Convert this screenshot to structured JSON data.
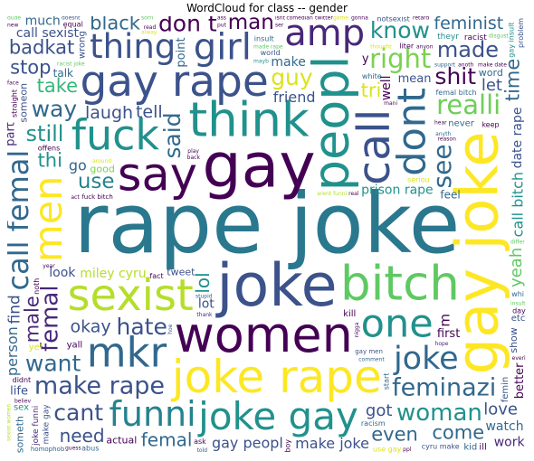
{
  "chart_data": {
    "type": "wordcloud",
    "title": "WordCloud for class -- gender",
    "colormap": "viridis",
    "background": "#ffffff",
    "words": [
      {
        "text": "rape joke",
        "weight": 100,
        "color": "#2a788e"
      },
      {
        "text": "gay",
        "weight": 72,
        "color": "#440154"
      },
      {
        "text": "joke",
        "weight": 68,
        "color": "#3b528b"
      },
      {
        "text": "gay joke",
        "weight": 67,
        "color": "#fde725"
      },
      {
        "text": "women",
        "weight": 55,
        "color": "#440154"
      },
      {
        "text": "peopl",
        "weight": 55,
        "color": "#21918c"
      },
      {
        "text": "think",
        "weight": 53,
        "color": "#21918c"
      },
      {
        "text": "bitch",
        "weight": 53,
        "color": "#5ec962"
      },
      {
        "text": "say",
        "weight": 51,
        "color": "#440154"
      },
      {
        "text": "joke rape",
        "weight": 50,
        "color": "#fde725"
      },
      {
        "text": "call",
        "weight": 49,
        "color": "#3b528b"
      },
      {
        "text": "sexist",
        "weight": 48,
        "color": "#b5de2b"
      },
      {
        "text": "gay rape",
        "weight": 46,
        "color": "#3b528b"
      },
      {
        "text": "fuck",
        "weight": 45,
        "color": "#21918c"
      },
      {
        "text": "mkr",
        "weight": 44,
        "color": "#31688e"
      },
      {
        "text": "one",
        "weight": 42,
        "color": "#21918c"
      },
      {
        "text": "dont",
        "weight": 42,
        "color": "#31688e"
      },
      {
        "text": "men",
        "weight": 42,
        "color": "#fde725"
      },
      {
        "text": "joke gay",
        "weight": 41,
        "color": "#21918c"
      },
      {
        "text": "girl",
        "weight": 38,
        "color": "#3b528b"
      },
      {
        "text": "amp",
        "weight": 38,
        "color": "#482878"
      },
      {
        "text": "funni",
        "weight": 36,
        "color": "#26828e"
      },
      {
        "text": "thing",
        "weight": 35,
        "color": "#3b528b"
      },
      {
        "text": "call femal",
        "weight": 29,
        "color": "#31688e"
      },
      {
        "text": "joke",
        "weight": 32,
        "color": "#31688e"
      },
      {
        "text": "right",
        "weight": 25,
        "color": "#7ad151"
      },
      {
        "text": "realli",
        "weight": 25,
        "color": "#6ece58"
      },
      {
        "text": "make rape",
        "weight": 23,
        "color": "#3b528b"
      },
      {
        "text": "feminazi",
        "weight": 23,
        "color": "#31688e"
      },
      {
        "text": "woman",
        "weight": 22,
        "color": "#21918c"
      },
      {
        "text": "femal",
        "weight": 22,
        "color": "#482878"
      },
      {
        "text": "see",
        "weight": 24,
        "color": "#31688e"
      },
      {
        "text": "way",
        "weight": 20,
        "color": "#31688e"
      },
      {
        "text": "shit",
        "weight": 20,
        "color": "#440154"
      },
      {
        "text": "don t",
        "weight": 20,
        "color": "#440154"
      },
      {
        "text": "guy",
        "weight": 20,
        "color": "#dce319"
      },
      {
        "text": "want",
        "weight": 20,
        "color": "#31688e"
      },
      {
        "text": "know",
        "weight": 20,
        "color": "#21918c"
      },
      {
        "text": "said",
        "weight": 20,
        "color": "#31688e"
      },
      {
        "text": "hate",
        "weight": 20,
        "color": "#3b528b"
      },
      {
        "text": "cant",
        "weight": 20,
        "color": "#3b528b"
      },
      {
        "text": "made",
        "weight": 19,
        "color": "#3b528b"
      },
      {
        "text": "still",
        "weight": 19,
        "color": "#21918c"
      },
      {
        "text": "man",
        "weight": 18,
        "color": "#440154"
      },
      {
        "text": "use",
        "weight": 18,
        "color": "#26828e"
      },
      {
        "text": "male",
        "weight": 16,
        "color": "#482878"
      },
      {
        "text": "even",
        "weight": 16,
        "color": "#31688e"
      },
      {
        "text": "take",
        "weight": 16,
        "color": "#35b779"
      },
      {
        "text": "black",
        "weight": 16,
        "color": "#31688e"
      },
      {
        "text": "time",
        "weight": 16,
        "color": "#31688e"
      },
      {
        "text": "gay peopl",
        "weight": 15,
        "color": "#3b528b"
      },
      {
        "text": "make joke",
        "weight": 15,
        "color": "#3b528b"
      },
      {
        "text": "call bitch",
        "weight": 15,
        "color": "#21918c"
      },
      {
        "text": "badkat",
        "weight": 15,
        "color": "#3b528b"
      },
      {
        "text": "stop",
        "weight": 15,
        "color": "#3b528b"
      },
      {
        "text": "come",
        "weight": 15,
        "color": "#31688e"
      },
      {
        "text": "friend",
        "weight": 15,
        "color": "#3b528b"
      },
      {
        "text": "thi",
        "weight": 15,
        "color": "#21918c"
      },
      {
        "text": "tri",
        "weight": 15,
        "color": "#dce319"
      },
      {
        "text": "person",
        "weight": 15,
        "color": "#31688e"
      },
      {
        "text": "lol",
        "weight": 14,
        "color": "#21918c"
      },
      {
        "text": "need",
        "weight": 14,
        "color": "#3b528b"
      },
      {
        "text": "femal",
        "weight": 14,
        "color": "#31688e"
      },
      {
        "text": "prison rape",
        "weight": 13,
        "color": "#21918c"
      },
      {
        "text": "laugh",
        "weight": 13,
        "color": "#3b528b"
      },
      {
        "text": "miley cyru",
        "weight": 13,
        "color": "#b5de2b"
      },
      {
        "text": "date rape",
        "weight": 13,
        "color": "#3b528b"
      },
      {
        "text": "feminist",
        "weight": 13,
        "color": "#31688e"
      },
      {
        "text": "okay",
        "weight": 13,
        "color": "#3b528b"
      },
      {
        "text": "tell",
        "weight": 13,
        "color": "#3b528b"
      },
      {
        "text": "make",
        "weight": 13,
        "color": "#31688e"
      },
      {
        "text": "someth",
        "weight": 12,
        "color": "#31688e"
      },
      {
        "text": "call sexist",
        "weight": 12,
        "color": "#3b528b"
      },
      {
        "text": "someon",
        "weight": 12,
        "color": "#3b528b"
      },
      {
        "text": "work",
        "weight": 12,
        "color": "#482878"
      },
      {
        "text": "good",
        "weight": 12,
        "color": "#7ad151"
      },
      {
        "text": "look",
        "weight": 12,
        "color": "#3b528b"
      },
      {
        "text": "love",
        "weight": 12,
        "color": "#3b528b"
      },
      {
        "text": "much",
        "weight": 12,
        "color": "#31688e"
      },
      {
        "text": "let",
        "weight": 12,
        "color": "#3b528b"
      },
      {
        "text": "yeah",
        "weight": 12,
        "color": "#5ec962"
      },
      {
        "text": "got",
        "weight": 12,
        "color": "#3b528b"
      },
      {
        "text": "well",
        "weight": 12,
        "color": "#440154"
      },
      {
        "text": "watch",
        "weight": 12,
        "color": "#31688e"
      },
      {
        "text": "actual",
        "weight": 12,
        "color": "#440154"
      },
      {
        "text": "tweet",
        "weight": 12,
        "color": "#3b528b"
      },
      {
        "text": "word",
        "weight": 12,
        "color": "#31688e"
      },
      {
        "text": "find",
        "weight": 11,
        "color": "#3b528b"
      },
      {
        "text": "mean",
        "weight": 11,
        "color": "#3b528b"
      },
      {
        "text": "never",
        "weight": 11,
        "color": "#31688e"
      },
      {
        "text": "notsexist",
        "weight": 11,
        "color": "#3b528b"
      },
      {
        "text": "fuck bitch",
        "weight": 10,
        "color": "#440154"
      },
      {
        "text": "talk",
        "weight": 10,
        "color": "#31688e"
      },
      {
        "text": "make gay",
        "weight": 10,
        "color": "#3b528b"
      },
      {
        "text": "joke funni",
        "weight": 9,
        "color": "#482878"
      },
      {
        "text": "gay men",
        "weight": 9,
        "color": "#3b528b"
      },
      {
        "text": "homophob",
        "weight": 9,
        "color": "#31688e"
      },
      {
        "text": "theyr",
        "weight": 9,
        "color": "#21918c"
      },
      {
        "text": "racist",
        "weight": 9,
        "color": "#440154"
      },
      {
        "text": "feel",
        "weight": 9,
        "color": "#31688e"
      },
      {
        "text": "go",
        "weight": 9,
        "color": "#31688e"
      },
      {
        "text": "show",
        "weight": 8,
        "color": "#3b528b"
      },
      {
        "text": "cyru make",
        "weight": 8,
        "color": "#3b528b"
      },
      {
        "text": "seriou",
        "weight": 8,
        "color": "#dce319"
      },
      {
        "text": "m",
        "weight": 8,
        "color": "#440154"
      },
      {
        "text": "lot",
        "weight": 7,
        "color": "#3b528b"
      },
      {
        "text": "insult",
        "weight": 7,
        "color": "#31688e"
      },
      {
        "text": "comedian",
        "weight": 7,
        "color": "#440154"
      },
      {
        "text": "gay insult",
        "weight": 7,
        "color": "#21918c"
      },
      {
        "text": "arent funni",
        "weight": 7,
        "color": "#b5de2b"
      },
      {
        "text": "racist joke",
        "weight": 6,
        "color": "#5ec962"
      },
      {
        "text": "use gay",
        "weight": 6,
        "color": "#dce319"
      },
      {
        "text": "white",
        "weight": 6,
        "color": "#31688e"
      },
      {
        "text": "world",
        "weight": 6,
        "color": "#3b528b"
      },
      {
        "text": "life",
        "weight": 6,
        "color": "#3b528b"
      },
      {
        "text": "femin",
        "weight": 6,
        "color": "#3b528b"
      },
      {
        "text": "yall",
        "weight": 6,
        "color": "#440154"
      },
      {
        "text": "equal",
        "weight": 6,
        "color": "#440154"
      },
      {
        "text": "fact",
        "weight": 6,
        "color": "#440154"
      },
      {
        "text": "comment",
        "weight": 6,
        "color": "#31688e"
      },
      {
        "text": "femal bitch",
        "weight": 6,
        "color": "#31688e"
      },
      {
        "text": "offens",
        "weight": 6,
        "color": "#440154"
      },
      {
        "text": "sexist women",
        "weight": 6,
        "color": "#b5de2b"
      },
      {
        "text": "first",
        "weight": 6,
        "color": "#440154"
      },
      {
        "text": "liter",
        "weight": 6,
        "color": "#440154"
      },
      {
        "text": "etc",
        "weight": 6,
        "color": "#3b528b"
      },
      {
        "text": "hoe",
        "weight": 6,
        "color": "#3b528b"
      },
      {
        "text": "racism",
        "weight": 6,
        "color": "#31688e"
      },
      {
        "text": "yet",
        "weight": 6,
        "color": "#dce319"
      },
      {
        "text": "point",
        "weight": 6,
        "color": "#31688e"
      },
      {
        "text": "kill",
        "weight": 6,
        "color": "#440154"
      },
      {
        "text": "kid",
        "weight": 6,
        "color": "#31688e"
      },
      {
        "text": "abus",
        "weight": 6,
        "color": "#31688e"
      },
      {
        "text": "reason",
        "weight": 6,
        "color": "#440154"
      },
      {
        "text": "whi",
        "weight": 6,
        "color": "#31688e"
      },
      {
        "text": "around",
        "weight": 6,
        "color": "#dce319"
      },
      {
        "text": "start",
        "weight": 6,
        "color": "#31688e"
      },
      {
        "text": "problem",
        "weight": 6,
        "color": "#3b528b"
      },
      {
        "text": "feminist dog",
        "weight": 5,
        "color": "#440154"
      },
      {
        "text": "anyth",
        "weight": 6,
        "color": "#31688e"
      },
      {
        "text": "thank",
        "weight": 6,
        "color": "#482878"
      },
      {
        "text": "dude",
        "weight": 6,
        "color": "#5ec962"
      },
      {
        "text": "keep",
        "weight": 6,
        "color": "#440154"
      },
      {
        "text": "back",
        "weight": 6,
        "color": "#440154"
      },
      {
        "text": "wrong",
        "weight": 6,
        "color": "#3b528b"
      },
      {
        "text": "hope",
        "weight": 6,
        "color": "#482878"
      },
      {
        "text": "didnt",
        "weight": 6,
        "color": "#440154"
      },
      {
        "text": "doesnt",
        "weight": 6,
        "color": "#3b528b"
      },
      {
        "text": "thought",
        "weight": 6,
        "color": "#dce319"
      },
      {
        "text": "part",
        "weight": 6,
        "color": "#482878"
      },
      {
        "text": "sorri",
        "weight": 6,
        "color": "#5ec962"
      },
      {
        "text": "twitter",
        "weight": 6,
        "color": "#440154"
      },
      {
        "text": "anoth",
        "weight": 6,
        "color": "#440154"
      },
      {
        "text": "sex",
        "weight": 6,
        "color": "#21918c"
      },
      {
        "text": "game",
        "weight": 6,
        "color": "#dce319"
      },
      {
        "text": "gonna",
        "weight": 6,
        "color": "#440154"
      },
      {
        "text": "ask",
        "weight": 6,
        "color": "#440154"
      },
      {
        "text": "year",
        "weight": 6,
        "color": "#440154"
      },
      {
        "text": "made rape",
        "weight": 6,
        "color": "#5ec962"
      },
      {
        "text": "retard",
        "weight": 6,
        "color": "#440154"
      },
      {
        "text": "nigga",
        "weight": 6,
        "color": "#440154"
      },
      {
        "text": "disgust",
        "weight": 6,
        "color": "#5ec962"
      },
      {
        "text": "play",
        "weight": 6,
        "color": "#440154"
      },
      {
        "text": "read",
        "weight": 6,
        "color": "#440154"
      },
      {
        "text": "anyon",
        "weight": 6,
        "color": "#440154"
      },
      {
        "text": "support",
        "weight": 6,
        "color": "#31688e"
      },
      {
        "text": "told",
        "weight": 6,
        "color": "#3b528b"
      },
      {
        "text": "make date",
        "weight": 6,
        "color": "#440154"
      },
      {
        "text": "happen",
        "weight": 6,
        "color": "#3b528b"
      },
      {
        "text": "mani",
        "weight": 6,
        "color": "#440154"
      },
      {
        "text": "stupid",
        "weight": 6,
        "color": "#31688e"
      },
      {
        "text": "believ",
        "weight": 6,
        "color": "#440154"
      },
      {
        "text": "better",
        "weight": 6,
        "color": "#440154"
      },
      {
        "text": "new",
        "weight": 6,
        "color": "#440154"
      },
      {
        "text": "real",
        "weight": 6,
        "color": "#440154"
      },
      {
        "text": "alway",
        "weight": 6,
        "color": "#dce319"
      },
      {
        "text": "ass",
        "weight": 6,
        "color": "#440154"
      },
      {
        "text": "comedi",
        "weight": 6,
        "color": "#440154"
      },
      {
        "text": "joke arent",
        "weight": 6,
        "color": "#5ec962"
      },
      {
        "text": "everyon",
        "weight": 6,
        "color": "#dce319"
      },
      {
        "text": "ill",
        "weight": 6,
        "color": "#440154"
      },
      {
        "text": "mayb",
        "weight": 6,
        "color": "#21918c"
      },
      {
        "text": "noth",
        "weight": 6,
        "color": "#440154"
      },
      {
        "text": "isnt",
        "weight": 6,
        "color": "#440154"
      },
      {
        "text": "ppl",
        "weight": 6,
        "color": "#440154"
      },
      {
        "text": "differ",
        "weight": 6,
        "color": "#5ec962"
      },
      {
        "text": "straight",
        "weight": 6,
        "color": "#440154"
      },
      {
        "text": "insult",
        "weight": 6,
        "color": "#5ec962"
      },
      {
        "text": "guess",
        "weight": 6,
        "color": "#440154"
      },
      {
        "text": "face",
        "weight": 6,
        "color": "#440154"
      },
      {
        "text": "everi",
        "weight": 6,
        "color": "#440154"
      },
      {
        "text": "day",
        "weight": 6,
        "color": "#440154"
      },
      {
        "text": "act",
        "weight": 6,
        "color": "#440154"
      },
      {
        "text": "boy",
        "weight": 6,
        "color": "#440154"
      },
      {
        "text": "y",
        "weight": 6,
        "color": "#440154"
      },
      {
        "text": "hear",
        "weight": 6,
        "color": "#440154"
      },
      {
        "text": "put",
        "weight": 6,
        "color": "#440154"
      },
      {
        "text": "ser",
        "weight": 6,
        "color": "#440154"
      }
    ]
  }
}
